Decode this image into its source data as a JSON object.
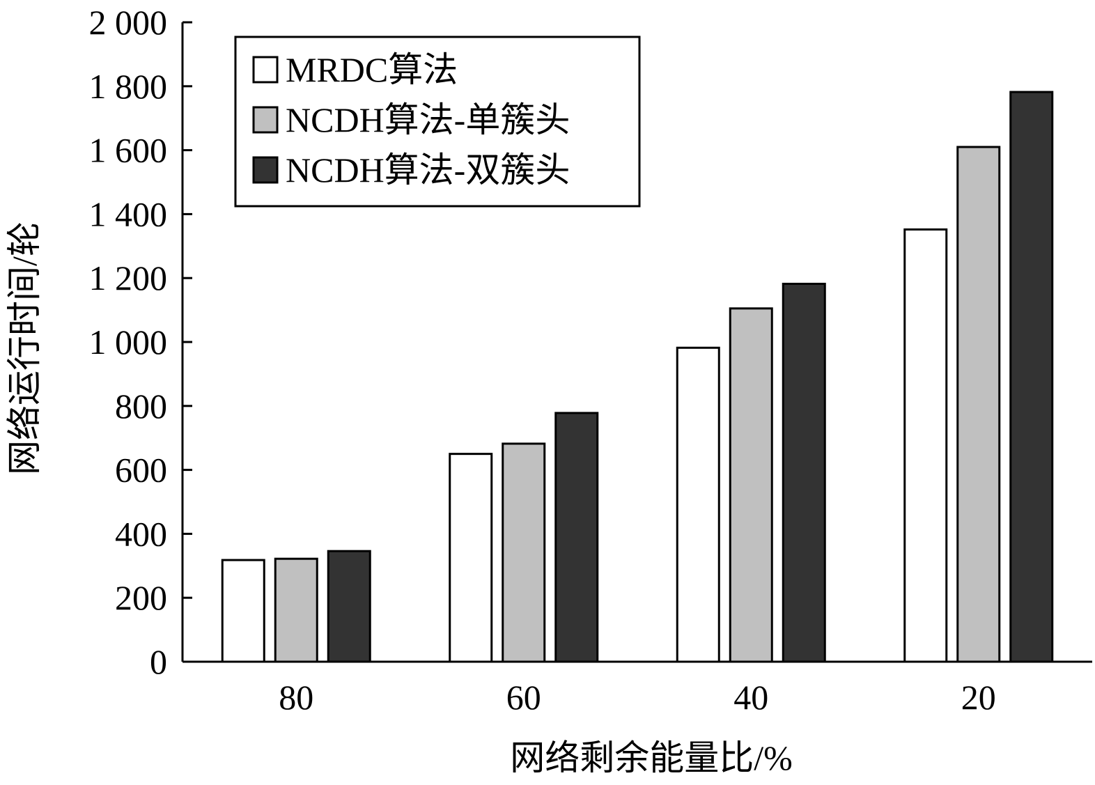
{
  "chart_data": {
    "type": "bar",
    "categories": [
      "80",
      "60",
      "40",
      "20"
    ],
    "series": [
      {
        "name": "MRDC算法",
        "values": [
          318,
          650,
          982,
          1352
        ],
        "color": "#ffffff"
      },
      {
        "name": "NCDH算法-单簇头",
        "values": [
          322,
          682,
          1105,
          1610
        ],
        "color": "#c0c0c0"
      },
      {
        "name": "NCDH算法-双簇头",
        "values": [
          346,
          778,
          1182,
          1782
        ],
        "color": "#333333"
      }
    ],
    "xlabel": "网络剩余能量比/%",
    "ylabel": "网络运行时间/轮",
    "ylim": [
      0,
      2000
    ],
    "yticks": [
      0,
      200,
      400,
      600,
      800,
      1000,
      1200,
      1400,
      1600,
      1800,
      2000
    ],
    "ytick_labels": [
      "0",
      "200",
      "400",
      "600",
      "800",
      "1 000",
      "1 200",
      "1 400",
      "1 600",
      "1 800",
      "2 000"
    ],
    "grid": false,
    "legend_position": "top-left"
  }
}
